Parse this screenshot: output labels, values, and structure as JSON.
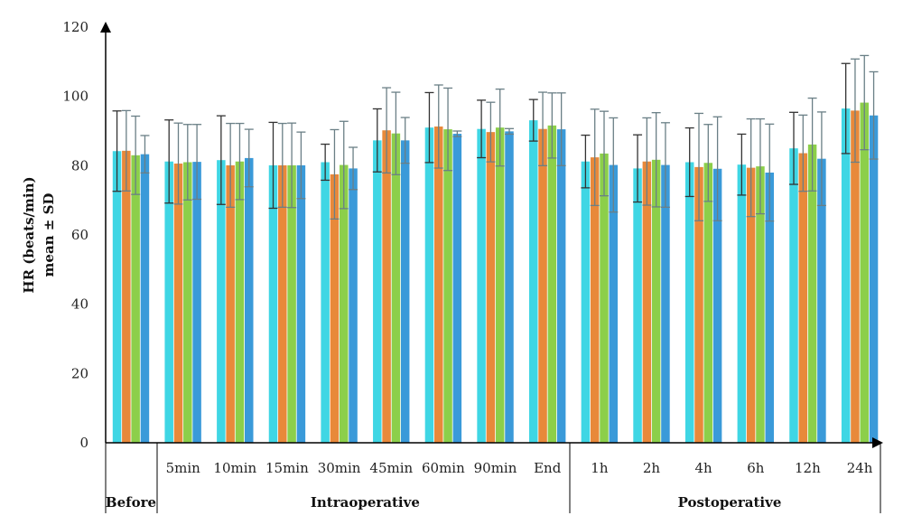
{
  "chart_data": {
    "type": "bar",
    "title": "",
    "ylabel_line1": "HR (beats/min)",
    "ylabel_line2": "mean ± SD",
    "ylim": [
      0,
      120
    ],
    "yticks": [
      0,
      20,
      40,
      60,
      80,
      100,
      120
    ],
    "grid": false,
    "legend": "none",
    "categories": [
      "Before",
      "5min",
      "10min",
      "15min",
      "30min",
      "45min",
      "60min",
      "90min",
      "End",
      "1h",
      "2h",
      "4h",
      "6h",
      "12h",
      "24h"
    ],
    "groups": [
      {
        "label": "Before",
        "span": [
          0,
          0
        ]
      },
      {
        "label": "Intraoperative",
        "span": [
          1,
          8
        ]
      },
      {
        "label": "Postoperative",
        "span": [
          9,
          14
        ]
      }
    ],
    "series_colors": [
      "#3fd6e4",
      "#e8893a",
      "#8ccf4a",
      "#3a9ad9"
    ],
    "series": [
      {
        "values": [
          84.2,
          81.2,
          81.6,
          80.1,
          81.0,
          87.3,
          91.0,
          90.6,
          93.1,
          81.2,
          79.2,
          81.0,
          80.3,
          85.0,
          96.5
        ],
        "sd": [
          11.6,
          12.0,
          12.8,
          12.4,
          5.2,
          9.1,
          10.1,
          8.3,
          6.0,
          7.6,
          9.7,
          9.9,
          8.8,
          10.4,
          13.0
        ]
      },
      {
        "values": [
          84.3,
          80.6,
          80.1,
          80.1,
          77.5,
          90.2,
          91.3,
          89.7,
          90.6,
          82.4,
          81.2,
          79.6,
          79.4,
          83.6,
          95.9
        ],
        "sd": [
          11.6,
          11.7,
          12.1,
          12.1,
          12.9,
          12.3,
          12.0,
          8.6,
          10.6,
          13.9,
          12.6,
          15.5,
          14.1,
          11.0,
          14.9
        ]
      },
      {
        "values": [
          83.0,
          81.0,
          81.2,
          80.1,
          80.2,
          89.3,
          90.5,
          91.0,
          91.6,
          83.5,
          81.7,
          80.8,
          79.8,
          86.1,
          98.2
        ],
        "sd": [
          11.3,
          10.9,
          11.0,
          12.2,
          12.6,
          11.9,
          11.9,
          11.1,
          9.4,
          12.2,
          13.6,
          11.1,
          13.7,
          13.4,
          13.6
        ]
      },
      {
        "values": [
          83.3,
          81.1,
          82.2,
          80.1,
          79.2,
          87.3,
          89.2,
          89.9,
          90.5,
          80.2,
          80.2,
          79.1,
          78.0,
          82.0,
          94.5
        ],
        "sd": [
          5.4,
          10.8,
          8.3,
          9.6,
          6.1,
          6.6,
          0.8,
          0.8,
          10.5,
          13.6,
          12.2,
          15.0,
          14.0,
          13.5,
          12.6
        ]
      }
    ]
  }
}
